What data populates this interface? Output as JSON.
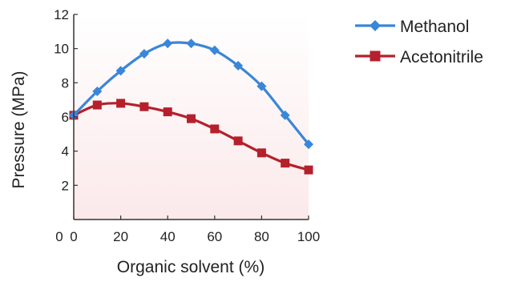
{
  "chart_data": {
    "type": "line",
    "title": "",
    "xlabel": "Organic solvent (%)",
    "ylabel": "Pressure (MPa)",
    "xlim": [
      0,
      100
    ],
    "ylim": [
      0,
      12
    ],
    "xticks": [
      0,
      20,
      40,
      60,
      80,
      100
    ],
    "yticks": [
      2,
      4,
      6,
      8,
      10,
      12
    ],
    "y_zero_label": "0",
    "grid": false,
    "legend_position": "right",
    "background_gradient": [
      "#fbe9ea",
      "#ffffff"
    ],
    "series": [
      {
        "name": "Methanol",
        "color": "#3a86d8",
        "marker": "diamond",
        "x": [
          0,
          10,
          20,
          30,
          40,
          50,
          60,
          70,
          80,
          90,
          100
        ],
        "y": [
          6.1,
          7.5,
          8.7,
          9.7,
          10.3,
          10.3,
          9.9,
          9.0,
          7.8,
          6.1,
          4.4
        ]
      },
      {
        "name": "Acetonitrile",
        "color": "#b5202c",
        "marker": "square",
        "x": [
          0,
          10,
          20,
          30,
          40,
          50,
          60,
          70,
          80,
          90,
          100
        ],
        "y": [
          6.1,
          6.7,
          6.8,
          6.6,
          6.3,
          5.9,
          5.3,
          4.6,
          3.9,
          3.3,
          2.9
        ]
      }
    ]
  }
}
